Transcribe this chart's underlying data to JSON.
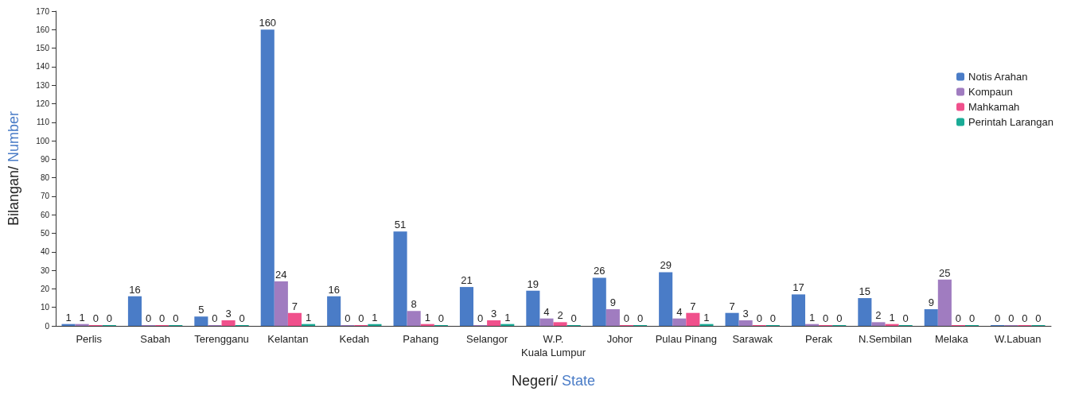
{
  "chart_data": {
    "type": "bar",
    "xlabel": "Negeri/ State",
    "ylabel": "Bilangan/ Number",
    "categories": [
      "Perlis",
      "Sabah",
      "Terengganu",
      "Kelantan",
      "Kedah",
      "Pahang",
      "Selangor",
      "W.P.\nKuala Lumpur",
      "Johor",
      "Pulau Pinang",
      "Sarawak",
      "Perak",
      "N.Sembilan",
      "Melaka",
      "W.Labuan"
    ],
    "series": [
      {
        "name": "Notis Arahan",
        "color": "#4a7cc7",
        "values": [
          1,
          16,
          5,
          160,
          16,
          51,
          21,
          19,
          26,
          29,
          7,
          17,
          15,
          9,
          0
        ]
      },
      {
        "name": "Kompaun",
        "color": "#a07cc0",
        "values": [
          1,
          0,
          0,
          24,
          0,
          8,
          0,
          4,
          9,
          4,
          3,
          1,
          2,
          25,
          0
        ]
      },
      {
        "name": "Mahkamah",
        "color": "#f0508c",
        "values": [
          0,
          0,
          3,
          7,
          0,
          1,
          3,
          2,
          0,
          7,
          0,
          0,
          1,
          0,
          0
        ]
      },
      {
        "name": "Perintah Larangan",
        "color": "#1aab96",
        "values": [
          0,
          0,
          0,
          1,
          1,
          0,
          1,
          0,
          0,
          1,
          0,
          0,
          0,
          0,
          0
        ]
      }
    ],
    "ylim": [
      0,
      170
    ],
    "yticks": [
      0,
      10,
      20,
      30,
      40,
      50,
      60,
      70,
      80,
      90,
      100,
      110,
      120,
      130,
      140,
      150,
      160,
      170
    ],
    "grid": false,
    "legend": "top right",
    "data_labels": true
  }
}
